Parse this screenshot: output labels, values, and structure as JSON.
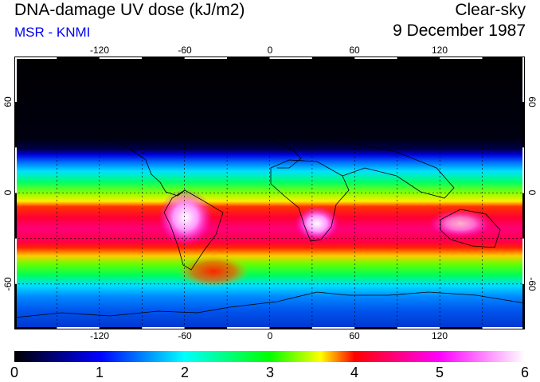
{
  "header": {
    "title": "DNA-damage UV dose (kJ/m2)",
    "subtitle": "MSR - KNMI",
    "condition": "Clear-sky",
    "date": "9 December 1987"
  },
  "map": {
    "longitude_labels_top": [
      "-120",
      "-60",
      "0",
      "60",
      "120"
    ],
    "longitude_labels_bottom": [
      "-120",
      "-60",
      "0",
      "60",
      "120"
    ],
    "latitude_labels_left": [
      "60",
      "0",
      "-60"
    ],
    "latitude_labels_right": [
      "60",
      "0",
      "-60"
    ],
    "lon_range": [
      -180,
      180
    ],
    "lat_range": [
      -90,
      90
    ],
    "grid_lons": [
      -150,
      -120,
      -90,
      -60,
      -30,
      0,
      30,
      60,
      90,
      120,
      150
    ],
    "grid_lats": [
      -60,
      -30,
      0,
      30,
      60
    ]
  },
  "colorbar": {
    "tick_labels": [
      "0",
      "1",
      "2",
      "3",
      "4",
      "5",
      "6"
    ],
    "min": 0,
    "max": 6,
    "stops": [
      "#000000",
      "#0000ff",
      "#00ffff",
      "#00ff00",
      "#ffff00",
      "#ff0000",
      "#ff00ff",
      "#ffffff"
    ]
  }
}
